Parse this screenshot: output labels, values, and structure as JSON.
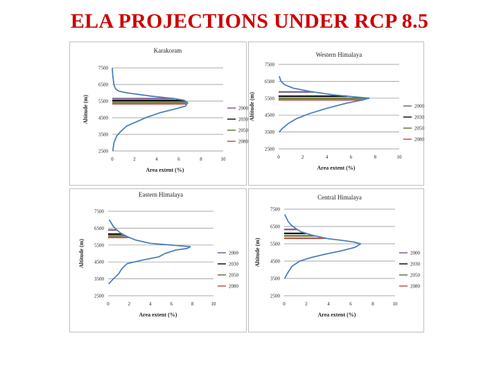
{
  "slide": {
    "title": "ELA PROJECTIONS UNDER RCP 8.5"
  },
  "chart_data": [
    {
      "type": "line",
      "title": "Karakoram",
      "xlabel": "Area extent (%)",
      "ylabel": "Altitude (m)",
      "xlim": [
        0,
        10
      ],
      "ylim": [
        2500,
        7500
      ],
      "xticks": [
        "0",
        "2",
        "4",
        "6",
        "8",
        "10"
      ],
      "yticks": [
        "2500",
        "3500",
        "4500",
        "5500",
        "6500",
        "7500"
      ],
      "hypsometry": {
        "altitude": [
          2500,
          3000,
          3400,
          3700,
          4000,
          4200,
          4500,
          4800,
          5000,
          5200,
          5400,
          5550,
          5650,
          5800,
          6000,
          6100,
          6200,
          6300,
          6500,
          7000,
          7500
        ],
        "area": [
          0.05,
          0.15,
          0.4,
          0.8,
          1.3,
          2.0,
          3.0,
          4.3,
          5.5,
          6.6,
          6.8,
          6.5,
          5.6,
          3.5,
          1.3,
          0.6,
          0.35,
          0.25,
          0.15,
          0.05,
          0
        ]
      },
      "ela_lines": [
        {
          "year": "2000",
          "altitude": 5650,
          "color": "#7a5a8c"
        },
        {
          "year": "2030",
          "altitude": 5540,
          "color": "#111111"
        },
        {
          "year": "2050",
          "altitude": 5440,
          "color": "#5a7a2a"
        },
        {
          "year": "2080",
          "altitude": 5340,
          "color": "#c0504d"
        }
      ],
      "legend": [
        "2000",
        "2030",
        "2050",
        "2080"
      ]
    },
    {
      "type": "line",
      "title": "Western Himalaya",
      "xlabel": "Area extent (%)",
      "ylabel": "Altitude (m)",
      "xlim": [
        0,
        10
      ],
      "ylim": [
        2500,
        7500
      ],
      "xticks": [
        "0",
        "2",
        "4",
        "6",
        "8",
        "10"
      ],
      "yticks": [
        "2500",
        "3500",
        "4500",
        "5500",
        "6500",
        "7500"
      ],
      "hypsometry": {
        "altitude": [
          3500,
          3700,
          4000,
          4300,
          4600,
          4900,
          5200,
          5400,
          5500,
          5600,
          5700,
          5900,
          6100,
          6300,
          6500,
          6800
        ],
        "area": [
          0.05,
          0.3,
          0.8,
          1.5,
          2.6,
          4.0,
          5.6,
          7.0,
          7.5,
          6.0,
          4.5,
          2.6,
          1.2,
          0.5,
          0.2,
          0.05
        ]
      },
      "ela_lines": [
        {
          "year": "2000",
          "altitude": 5870,
          "color": "#7a5a8c"
        },
        {
          "year": "2030",
          "altitude": 5620,
          "color": "#111111"
        },
        {
          "year": "2050",
          "altitude": 5500,
          "color": "#5a7a2a"
        },
        {
          "year": "2080",
          "altitude": 5400,
          "color": "#c0504d"
        }
      ],
      "legend": [
        "2000",
        "2030",
        "2050",
        "2080"
      ]
    },
    {
      "type": "line",
      "title": "Eastern Himalaya",
      "xlabel": "Area extent (%)",
      "ylabel": "Altitude (m)",
      "xlim": [
        0,
        10
      ],
      "ylim": [
        2500,
        7500
      ],
      "xticks": [
        "0",
        "2",
        "4",
        "6",
        "8",
        "10"
      ],
      "yticks": [
        "2500",
        "3500",
        "4500",
        "5500",
        "6500",
        "7500"
      ],
      "hypsometry": {
        "altitude": [
          3200,
          3500,
          3800,
          4100,
          4400,
          4600,
          4800,
          5000,
          5200,
          5300,
          5400,
          5500,
          5600,
          5800,
          6000,
          6200,
          6400,
          6600,
          6800,
          7000
        ],
        "area": [
          0.05,
          0.5,
          1.0,
          1.3,
          1.8,
          3.2,
          4.8,
          5.4,
          6.4,
          7.5,
          7.8,
          6.0,
          4.0,
          2.6,
          1.8,
          1.2,
          0.8,
          0.5,
          0.3,
          0.1
        ]
      },
      "ela_lines": [
        {
          "year": "2000",
          "altitude": 6390,
          "color": "#7a5a8c"
        },
        {
          "year": "2030",
          "altitude": 6150,
          "color": "#111111"
        },
        {
          "year": "2050",
          "altitude": 6050,
          "color": "#5a7a2a"
        },
        {
          "year": "2080",
          "altitude": 5950,
          "color": "#c0504d"
        }
      ],
      "legend": [
        "2000",
        "2030",
        "2050",
        "2080"
      ]
    },
    {
      "type": "line",
      "title": "Central Himalaya",
      "xlabel": "Area extent (%)",
      "ylabel": "Altitude (m)",
      "xlim": [
        0,
        10
      ],
      "ylim": [
        2500,
        7500
      ],
      "xticks": [
        "0",
        "2",
        "4",
        "6",
        "8",
        "10"
      ],
      "yticks": [
        "2500",
        "3500",
        "4500",
        "5500",
        "6500",
        "7500"
      ],
      "hypsometry": {
        "altitude": [
          3500,
          3800,
          4200,
          4500,
          4700,
          4900,
          5100,
          5300,
          5500,
          5600,
          5700,
          5800,
          6000,
          6200,
          6400,
          6600,
          6800,
          7000,
          7200
        ],
        "area": [
          0.05,
          0.3,
          0.7,
          1.4,
          2.4,
          3.7,
          5.2,
          6.4,
          6.9,
          6.3,
          5.2,
          3.9,
          2.5,
          1.5,
          1.0,
          0.6,
          0.35,
          0.2,
          0.05
        ]
      },
      "ela_lines": [
        {
          "year": "2000",
          "altitude": 6330,
          "color": "#7a5a8c"
        },
        {
          "year": "2030",
          "altitude": 6100,
          "color": "#111111"
        },
        {
          "year": "2050",
          "altitude": 5960,
          "color": "#5a7a2a"
        },
        {
          "year": "2080",
          "altitude": 5820,
          "color": "#c0504d"
        }
      ],
      "legend": [
        "2000",
        "2030",
        "2050",
        "2080"
      ]
    }
  ],
  "colors": {
    "title": "#cc0000",
    "hypsometry_line": "#4a7ebb",
    "grid": "#8a8a8a",
    "panel_border": "#bfbfbf"
  }
}
